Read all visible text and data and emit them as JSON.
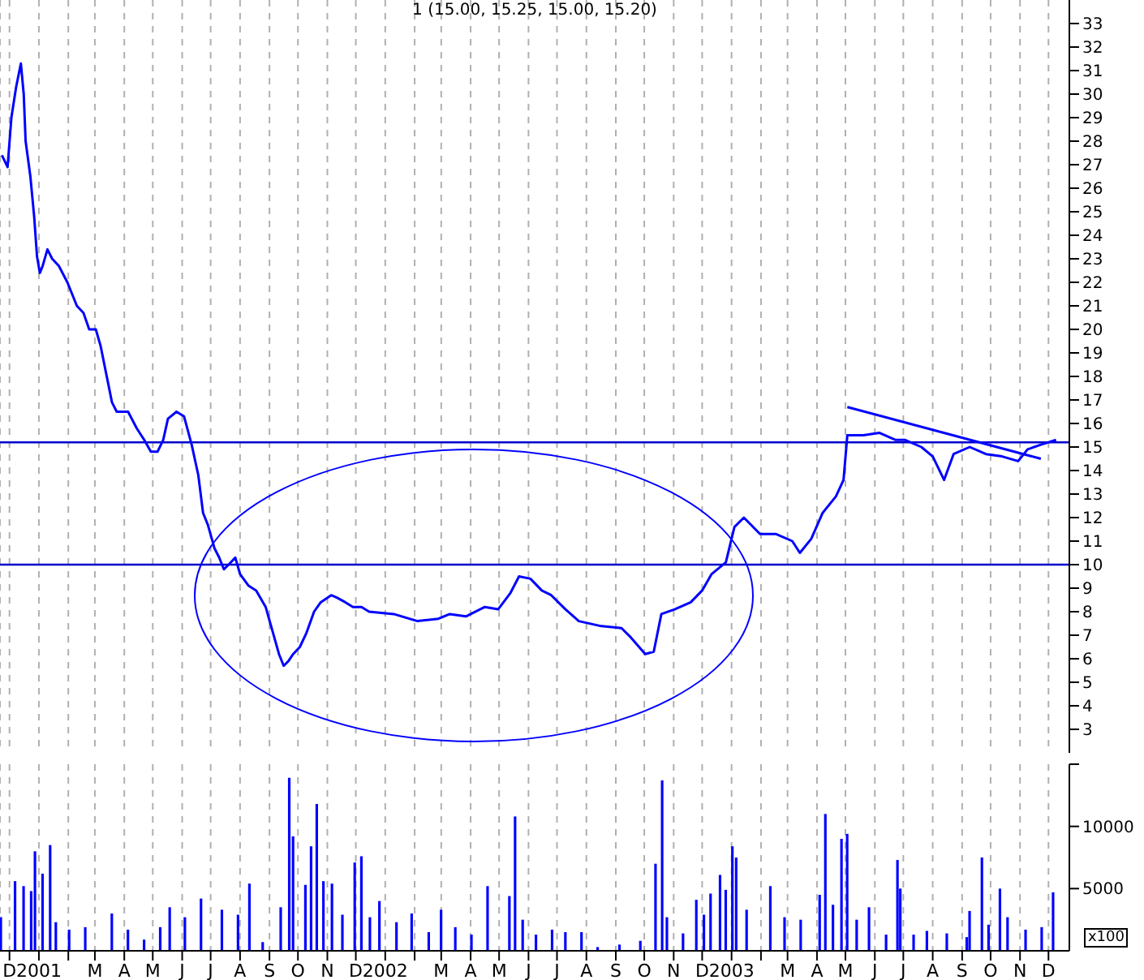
{
  "chart_data": [
    {
      "type": "line",
      "title": "1 (15.00, 15.25, 15.00, 15.20)",
      "tick_labels": "y",
      "grid": "x",
      "xlim": [
        "2000-11-21",
        "2003-12-23"
      ],
      "xticks": [
        {
          "value": "2000-12",
          "label": null
        },
        {
          "value": "2001-01",
          "label": null
        },
        {
          "value": "2001-02",
          "label": null
        },
        {
          "value": "2001-03",
          "label": null
        },
        {
          "value": "2001-04",
          "label": null
        },
        {
          "value": "2001-05",
          "label": null
        },
        {
          "value": "2001-06",
          "label": null
        },
        {
          "value": "2001-07",
          "label": null
        },
        {
          "value": "2001-08",
          "label": null
        },
        {
          "value": "2001-09",
          "label": null
        },
        {
          "value": "2001-10",
          "label": null
        },
        {
          "value": "2001-11",
          "label": null
        },
        {
          "value": "2001-12",
          "label": null
        },
        {
          "value": "2002-01",
          "label": null
        },
        {
          "value": "2002-02",
          "label": null
        },
        {
          "value": "2002-03",
          "label": null
        },
        {
          "value": "2002-04",
          "label": null
        },
        {
          "value": "2002-05",
          "label": null
        },
        {
          "value": "2002-06",
          "label": null
        },
        {
          "value": "2002-07",
          "label": null
        },
        {
          "value": "2002-08",
          "label": null
        },
        {
          "value": "2002-09",
          "label": null
        },
        {
          "value": "2002-10",
          "label": null
        },
        {
          "value": "2002-11",
          "label": null
        },
        {
          "value": "2002-12",
          "label": null
        },
        {
          "value": "2003-01",
          "label": null
        },
        {
          "value": "2003-02",
          "label": null
        },
        {
          "value": "2003-03",
          "label": null
        },
        {
          "value": "2003-04",
          "label": null
        },
        {
          "value": "2003-05",
          "label": null
        },
        {
          "value": "2003-06",
          "label": null
        },
        {
          "value": "2003-07",
          "label": null
        },
        {
          "value": "2003-08",
          "label": null
        },
        {
          "value": "2003-09",
          "label": null
        },
        {
          "value": "2003-10",
          "label": null
        },
        {
          "value": "2003-11",
          "label": null
        },
        {
          "value": "2003-12",
          "label": null
        }
      ],
      "ylim": [
        2,
        34
      ],
      "yticks": [
        3,
        4,
        5,
        6,
        7,
        8,
        9,
        10,
        11,
        12,
        13,
        14,
        15,
        16,
        17,
        18,
        19,
        20,
        21,
        22,
        23,
        24,
        25,
        26,
        27,
        28,
        29,
        30,
        31,
        32,
        33
      ],
      "ref_lines": [
        {
          "axis": "y",
          "value": 15.2,
          "color": "#0000cc"
        },
        {
          "axis": "y",
          "value": 10,
          "color": "#0000cc"
        }
      ],
      "series": [
        {
          "color": "#0000ff",
          "x": [
            "2000-11-23",
            "2000-11-29",
            "2000-12-03",
            "2000-12-08",
            "2000-12-13",
            "2000-12-16",
            "2000-12-18",
            "2000-12-23",
            "2000-12-27",
            "2000-12-30",
            "2001-01-02",
            "2001-01-05",
            "2001-01-10",
            "2001-01-15",
            "2001-01-22",
            "2001-01-31",
            "2001-02-10",
            "2001-02-17",
            "2001-02-23",
            "2001-03-02",
            "2001-03-07",
            "2001-03-14",
            "2001-03-19",
            "2001-03-24",
            "2001-03-29",
            "2001-04-05",
            "2001-04-14",
            "2001-04-22",
            "2001-04-29",
            "2001-05-06",
            "2001-05-12",
            "2001-05-17",
            "2001-05-26",
            "2001-06-03",
            "2001-06-11",
            "2001-06-18",
            "2001-06-23",
            "2001-06-28",
            "2001-07-05",
            "2001-07-10",
            "2001-07-15",
            "2001-07-20",
            "2001-07-27",
            "2001-08-01",
            "2001-08-10",
            "2001-08-18",
            "2001-08-28",
            "2001-09-04",
            "2001-09-11",
            "2001-09-16",
            "2001-09-21",
            "2001-09-26",
            "2001-10-03",
            "2001-10-10",
            "2001-10-18",
            "2001-10-25",
            "2001-11-05",
            "2001-11-11",
            "2001-11-20",
            "2001-11-28",
            "2001-12-07",
            "2001-12-15",
            "2002-01-10",
            "2002-02-04",
            "2002-02-26",
            "2002-03-10",
            "2002-03-27",
            "2002-04-16",
            "2002-04-30",
            "2002-05-13",
            "2002-05-22",
            "2002-06-03",
            "2002-06-15",
            "2002-06-25",
            "2002-07-10",
            "2002-07-24",
            "2002-08-15",
            "2002-09-07",
            "2002-09-17",
            "2002-10-02",
            "2002-10-11",
            "2002-10-19",
            "2002-11-02",
            "2002-11-19",
            "2002-12-01",
            "2002-12-11",
            "2002-12-26",
            "2003-01-04",
            "2003-01-14",
            "2003-01-31",
            "2003-02-17",
            "2003-03-06",
            "2003-03-14",
            "2003-03-26",
            "2003-04-07",
            "2003-04-21",
            "2003-04-29",
            "2003-05-03",
            "2003-05-20",
            "2003-06-06",
            "2003-06-23",
            "2003-07-03",
            "2003-07-20",
            "2003-08-01",
            "2003-08-13",
            "2003-08-23",
            "2003-09-09",
            "2003-09-26",
            "2003-10-13",
            "2003-10-30",
            "2003-11-09",
            "2003-11-23",
            "2003-12-09"
          ],
          "values": [
            27.4,
            26.9,
            29.0,
            30.3,
            31.3,
            30.0,
            28.0,
            26.5,
            24.8,
            23.1,
            22.4,
            22.7,
            23.4,
            23.0,
            22.7,
            22.0,
            21.0,
            20.7,
            20.0,
            20.0,
            19.3,
            17.9,
            16.9,
            16.5,
            16.5,
            16.5,
            15.8,
            15.3,
            14.8,
            14.8,
            15.3,
            16.2,
            16.5,
            16.3,
            15.1,
            13.8,
            12.2,
            11.7,
            10.7,
            10.3,
            9.8,
            10.0,
            10.3,
            9.6,
            9.1,
            8.9,
            8.2,
            7.2,
            6.2,
            5.7,
            5.9,
            6.2,
            6.5,
            7.1,
            8.0,
            8.4,
            8.7,
            8.6,
            8.4,
            8.2,
            8.2,
            8.0,
            7.9,
            7.6,
            7.7,
            7.9,
            7.8,
            8.2,
            8.1,
            8.8,
            9.5,
            9.4,
            8.9,
            8.7,
            8.1,
            7.6,
            7.4,
            7.3,
            6.9,
            6.2,
            6.3,
            7.9,
            8.1,
            8.4,
            8.9,
            9.6,
            10.1,
            11.6,
            12.0,
            11.3,
            11.3,
            11.0,
            10.5,
            11.1,
            12.2,
            12.9,
            13.6,
            15.5,
            15.5,
            15.6,
            15.3,
            15.3,
            15.0,
            14.6,
            13.6,
            14.7,
            15.0,
            14.7,
            14.6,
            14.4,
            14.9,
            15.1,
            15.3
          ]
        },
        {
          "type": "line",
          "color": "#0000ff",
          "x": [
            "2003-05-03",
            "2003-11-23"
          ],
          "values": [
            16.7,
            14.5
          ]
        }
      ]
    },
    {
      "type": "bar",
      "grid": "x",
      "annotations": [
        "x100"
      ],
      "xlim": [
        "2000-11-21",
        "2003-12-23"
      ],
      "xticks": [
        {
          "value": "2000-12",
          "label": "D"
        },
        {
          "value": "2001-01",
          "label": "2001"
        },
        {
          "value": "2001-02",
          "label": null
        },
        {
          "value": "2001-03",
          "label": "M"
        },
        {
          "value": "2001-04",
          "label": "A"
        },
        {
          "value": "2001-05",
          "label": "M"
        },
        {
          "value": "2001-06",
          "label": "J"
        },
        {
          "value": "2001-07",
          "label": "J"
        },
        {
          "value": "2001-08",
          "label": "A"
        },
        {
          "value": "2001-09",
          "label": "S"
        },
        {
          "value": "2001-10",
          "label": "O"
        },
        {
          "value": "2001-11",
          "label": "N"
        },
        {
          "value": "2001-12",
          "label": "D"
        },
        {
          "value": "2002-01",
          "label": "2002"
        },
        {
          "value": "2002-02",
          "label": null
        },
        {
          "value": "2002-03",
          "label": "M"
        },
        {
          "value": "2002-04",
          "label": "A"
        },
        {
          "value": "2002-05",
          "label": "M"
        },
        {
          "value": "2002-06",
          "label": "J"
        },
        {
          "value": "2002-07",
          "label": "J"
        },
        {
          "value": "2002-08",
          "label": "A"
        },
        {
          "value": "2002-09",
          "label": "S"
        },
        {
          "value": "2002-10",
          "label": "O"
        },
        {
          "value": "2002-11",
          "label": "N"
        },
        {
          "value": "2002-12",
          "label": "D"
        },
        {
          "value": "2003-01",
          "label": "2003"
        },
        {
          "value": "2003-02",
          "label": null
        },
        {
          "value": "2003-03",
          "label": "M"
        },
        {
          "value": "2003-04",
          "label": "A"
        },
        {
          "value": "2003-05",
          "label": "M"
        },
        {
          "value": "2003-06",
          "label": "J"
        },
        {
          "value": "2003-07",
          "label": "J"
        },
        {
          "value": "2003-08",
          "label": "A"
        },
        {
          "value": "2003-09",
          "label": "S"
        },
        {
          "value": "2003-10",
          "label": "O"
        },
        {
          "value": "2003-11",
          "label": "N"
        },
        {
          "value": "2003-12",
          "label": "D"
        }
      ],
      "ylim": [
        0,
        15000
      ],
      "yticks": [
        5000,
        10000,
        {
          "value": 15000,
          "label": null
        }
      ],
      "series": [
        {
          "color": "#0000ff",
          "x": [
            "2000-11-22",
            "2000-12-07",
            "2000-12-16",
            "2000-12-24",
            "2000-12-28",
            "2001-01-05",
            "2001-01-13",
            "2001-01-19",
            "2001-02-02",
            "2001-02-19",
            "2001-03-19",
            "2001-04-05",
            "2001-04-22",
            "2001-05-09",
            "2001-05-19",
            "2001-06-04",
            "2001-06-21",
            "2001-07-13",
            "2001-07-30",
            "2001-08-11",
            "2001-08-25",
            "2001-09-13",
            "2001-09-22",
            "2001-09-26",
            "2001-10-09",
            "2001-10-15",
            "2001-10-21",
            "2001-10-28",
            "2001-11-06",
            "2001-11-17",
            "2001-11-30",
            "2001-12-07",
            "2001-12-16",
            "2001-12-26",
            "2002-01-13",
            "2002-01-29",
            "2002-02-16",
            "2002-03-01",
            "2002-03-16",
            "2002-04-02",
            "2002-04-19",
            "2002-05-12",
            "2002-05-18",
            "2002-05-26",
            "2002-06-09",
            "2002-06-26",
            "2002-07-10",
            "2002-07-27",
            "2002-08-13",
            "2002-09-05",
            "2002-09-27",
            "2002-10-13",
            "2002-10-20",
            "2002-10-25",
            "2002-11-11",
            "2002-11-25",
            "2002-12-03",
            "2002-12-10",
            "2002-12-20",
            "2002-12-26",
            "2003-01-02",
            "2003-01-06",
            "2003-01-17",
            "2003-02-11",
            "2003-02-26",
            "2003-03-15",
            "2003-04-04",
            "2003-04-10",
            "2003-04-18",
            "2003-04-27",
            "2003-05-03",
            "2003-05-13",
            "2003-05-26",
            "2003-06-13",
            "2003-06-25",
            "2003-06-28",
            "2003-07-12",
            "2003-07-26",
            "2003-08-16",
            "2003-09-06",
            "2003-09-09",
            "2003-09-22",
            "2003-09-29",
            "2003-10-11",
            "2003-10-19",
            "2003-11-07",
            "2003-11-24",
            "2003-12-06"
          ],
          "values": [
            2700,
            5600,
            5200,
            4800,
            8000,
            6200,
            8500,
            2300,
            1700,
            1900,
            3000,
            1700,
            900,
            1900,
            3500,
            2700,
            4200,
            3300,
            2900,
            5400,
            700,
            3500,
            13900,
            9200,
            5300,
            8400,
            11800,
            5600,
            5400,
            2900,
            7100,
            7600,
            2700,
            4000,
            2300,
            3000,
            1500,
            3300,
            1900,
            1300,
            5200,
            4400,
            10800,
            2500,
            1300,
            1700,
            1500,
            1500,
            300,
            500,
            800,
            7000,
            13700,
            2700,
            1400,
            4100,
            2900,
            4600,
            6100,
            4900,
            8400,
            7500,
            3300,
            5200,
            2700,
            2500,
            4500,
            11000,
            3700,
            9000,
            9400,
            2500,
            3500,
            1300,
            7300,
            5000,
            1300,
            1600,
            1400,
            1100,
            3200,
            7500,
            2100,
            5000,
            2700,
            1700,
            1900,
            4700
          ]
        }
      ]
    }
  ]
}
